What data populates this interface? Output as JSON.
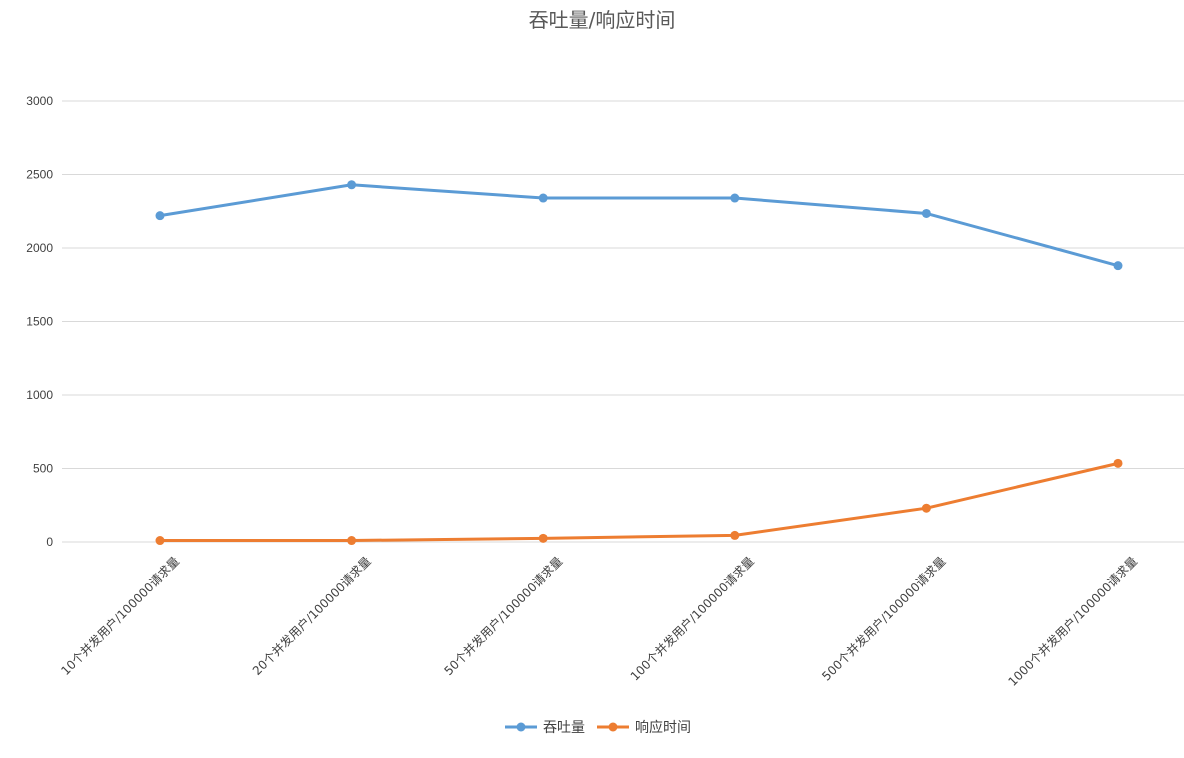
{
  "chart_data": {
    "type": "line",
    "title": "吞吐量/响应时间",
    "xlabel": "",
    "ylabel": "",
    "categories": [
      "10个并发用户/100000请求量",
      "20个并发用户/100000请求量",
      "50个并发用户/100000请求量",
      "100个并发用户/100000请求量",
      "500个并发用户/100000请求量",
      "1000个并发用户/100000请求量"
    ],
    "y_ticks": [
      "0",
      "500",
      "1000",
      "1500",
      "2000",
      "2500",
      "3000"
    ],
    "ylim": [
      0,
      3000
    ],
    "grid": true,
    "legend_position": "bottom",
    "series": [
      {
        "name": "吞吐量",
        "color": "#5b9bd5",
        "values": [
          2220,
          2430,
          2340,
          2340,
          2235,
          1880
        ]
      },
      {
        "name": "响应时间",
        "color": "#ed7d31",
        "values": [
          10,
          10,
          25,
          45,
          230,
          535
        ]
      }
    ]
  }
}
